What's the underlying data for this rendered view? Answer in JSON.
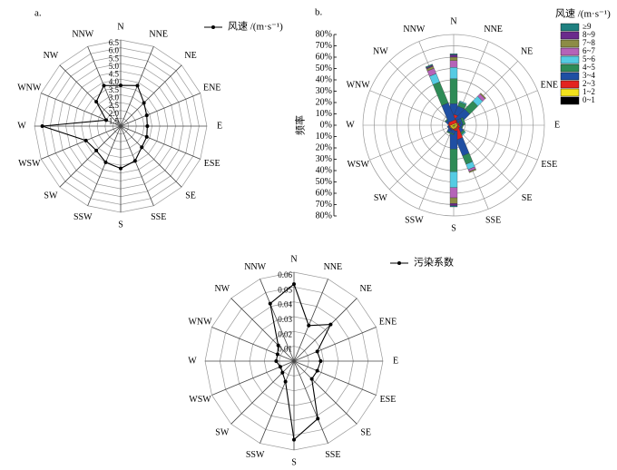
{
  "chart_data": [
    {
      "type": "radar",
      "panel_label": "a.",
      "grid_shape": "polygon",
      "categories": [
        "N",
        "NNE",
        "NE",
        "ENE",
        "E",
        "ESE",
        "SE",
        "SSE",
        "S",
        "SSW",
        "SW",
        "WSW",
        "W",
        "WNW",
        "NW",
        "NNW"
      ],
      "series": [
        {
          "name": "风速 /(m·s⁻¹)",
          "color": "#000000",
          "values": [
            3.6,
            3.8,
            3.1,
            2.8,
            2.7,
            2.8,
            2.9,
            3.4,
            3.7,
            3.5,
            3.2,
            3.4,
            6.0,
            2.0,
            3.2,
            3.8
          ]
        }
      ],
      "rlim": [
        1,
        6.5
      ],
      "rticks": [
        1.5,
        {
          "value": 2,
          "label": "2.0"
        },
        2.5,
        {
          "value": 3,
          "label": "3.0"
        },
        3.5,
        {
          "value": 4,
          "label": "4.0"
        },
        4.5,
        {
          "value": 5,
          "label": "5.0"
        },
        5.5,
        {
          "value": 6,
          "label": "6.0"
        },
        6.5
      ]
    },
    {
      "type": "wind_rose",
      "panel_label": "b.",
      "grid_shape": "circle",
      "y_label": "频率",
      "legend_title": "风速 /(m·s⁻¹)",
      "categories": [
        "N",
        "NNE",
        "NE",
        "ENE",
        "E",
        "ESE",
        "SE",
        "SSE",
        "S",
        "SSW",
        "SW",
        "WSW",
        "W",
        "WNW",
        "NW",
        "NNW"
      ],
      "series": [
        {
          "name": "0~1",
          "color": "#000000",
          "values": [
            0,
            0,
            0,
            0,
            0,
            0,
            0,
            0,
            0,
            0,
            0,
            0,
            0,
            0,
            0,
            0
          ]
        },
        {
          "name": "1~2",
          "color": "#f2e21c",
          "values": [
            1,
            1,
            1,
            1,
            1,
            1,
            1,
            1,
            1,
            1,
            1,
            1,
            1,
            1,
            1,
            1
          ]
        },
        {
          "name": "2~3",
          "color": "#e3231f",
          "values": [
            3,
            8,
            4,
            3,
            2,
            3,
            4,
            12,
            4,
            3,
            2,
            2,
            1,
            2,
            3,
            3
          ]
        },
        {
          "name": "3~4",
          "color": "#1f4fa3",
          "values": [
            15,
            8,
            12,
            4,
            2,
            3,
            4,
            15,
            16,
            3,
            2,
            1,
            1,
            1,
            3,
            16
          ]
        },
        {
          "name": "4~5",
          "color": "#2e8b57",
          "values": [
            22,
            4,
            10,
            2,
            1,
            1,
            2,
            8,
            20,
            1,
            0,
            0,
            0,
            0,
            1,
            20
          ]
        },
        {
          "name": "5~6",
          "color": "#55cbe3",
          "values": [
            10,
            1,
            6,
            0,
            0,
            0,
            1,
            5,
            14,
            0,
            0,
            0,
            0,
            0,
            0,
            8
          ]
        },
        {
          "name": "6~7",
          "color": "#b563b8",
          "values": [
            6,
            0,
            3,
            0,
            0,
            0,
            0,
            2,
            9,
            0,
            0,
            0,
            0,
            0,
            0,
            5
          ]
        },
        {
          "name": "7~8",
          "color": "#8c8c45",
          "values": [
            3,
            0,
            1,
            0,
            0,
            0,
            0,
            1,
            5,
            0,
            0,
            0,
            0,
            0,
            0,
            2
          ]
        },
        {
          "name": "8~9",
          "color": "#6b2a8c",
          "values": [
            2,
            0,
            0,
            0,
            0,
            0,
            0,
            0,
            2,
            0,
            0,
            0,
            0,
            0,
            0,
            1
          ]
        },
        {
          "name": "≥9",
          "color": "#1f8080",
          "values": [
            1,
            0,
            0,
            0,
            0,
            0,
            0,
            0,
            1,
            0,
            0,
            0,
            0,
            0,
            0,
            1
          ]
        }
      ],
      "rlim": [
        0,
        80
      ],
      "rticks": [
        {
          "value": 0,
          "label": "0%"
        },
        {
          "value": 10,
          "label": "10%"
        },
        {
          "value": 20,
          "label": "20%"
        },
        {
          "value": 30,
          "label": "30%"
        },
        {
          "value": 40,
          "label": "40%"
        },
        {
          "value": 50,
          "label": "50%"
        },
        {
          "value": 60,
          "label": "60%"
        },
        {
          "value": 70,
          "label": "70%"
        },
        {
          "value": 80,
          "label": "80%"
        }
      ]
    },
    {
      "type": "radar",
      "grid_shape": "polygon",
      "categories": [
        "N",
        "NNE",
        "NE",
        "ENE",
        "E",
        "ESE",
        "SE",
        "SSE",
        "S",
        "SSW",
        "SW",
        "WSW",
        "W",
        "WNW",
        "NW",
        "NNW"
      ],
      "series": [
        {
          "name": "污染系数",
          "color": "#000000",
          "values": [
            0.052,
            0.026,
            0.035,
            0.017,
            0.018,
            0.017,
            0.017,
            0.042,
            0.053,
            0.015,
            0.011,
            0.01,
            0.012,
            0.012,
            0.015,
            0.042
          ]
        }
      ],
      "rlim": [
        0,
        0.06
      ],
      "rticks": [
        0.01,
        0.02,
        0.03,
        0.04,
        0.05,
        0.06
      ]
    }
  ]
}
